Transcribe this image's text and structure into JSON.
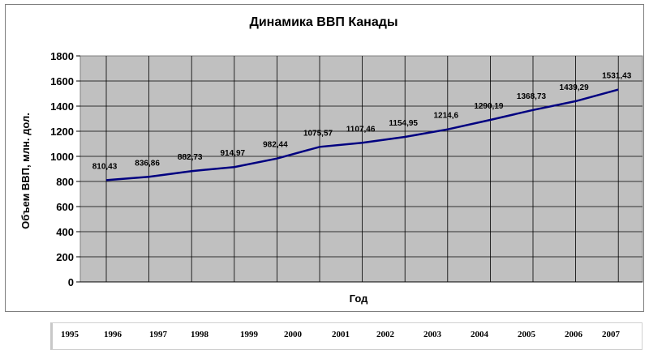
{
  "chart_data": {
    "type": "line",
    "title": "Динамика ВВП Канады",
    "xlabel": "Год",
    "ylabel": "Объем ВВП, млн. дол.",
    "ylim": [
      0,
      1800
    ],
    "yticks": [
      "0",
      "200",
      "400",
      "600",
      "800",
      "1000",
      "1200",
      "1400",
      "1600",
      "1800"
    ],
    "grid": true,
    "legend": "none",
    "colors": {
      "plot_bg": "#c0c0c0",
      "line": "#000080",
      "grid": "#000000"
    },
    "series": [
      {
        "values": [
          810.43,
          836.86,
          882.73,
          914.97,
          982.44,
          1075.57,
          1107.46,
          1154.95,
          1214.6,
          1290.19,
          1368.73,
          1439.29,
          1531.43
        ],
        "labels": [
          "810,43",
          "836,86",
          "882,73",
          "914,97",
          "982,44",
          "1075,57",
          "1107,46",
          "1154,95",
          "1214,6",
          "1290,19",
          "1368,73",
          "1439,29",
          "1531,43"
        ]
      }
    ]
  },
  "year_strip": [
    "1995",
    "1996",
    "1997",
    "1998",
    "1999",
    "2000",
    "2001",
    "2002",
    "2003",
    "2004",
    "2005",
    "2006",
    "2007"
  ]
}
